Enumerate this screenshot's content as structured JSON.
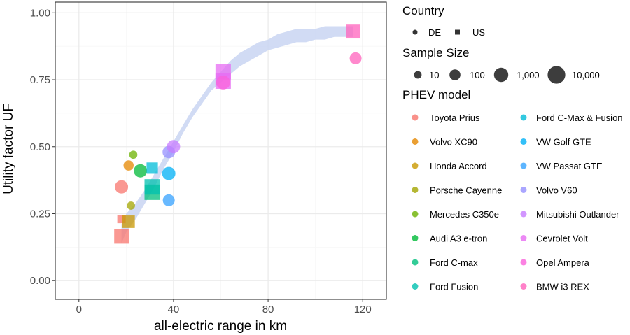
{
  "chart_data": {
    "type": "scatter",
    "xlabel": "all-electric range in km",
    "ylabel": "Utility factor UF",
    "xlim": [
      -10,
      130
    ],
    "ylim": [
      -0.07,
      1.04
    ],
    "x_ticks": [
      0,
      40,
      80,
      120
    ],
    "x_tick_labels": [
      "0",
      "40",
      "80",
      "120"
    ],
    "y_ticks": [
      0,
      0.25,
      0.5,
      0.75,
      1.0
    ],
    "y_tick_labels": [
      "0.00",
      "0.25",
      "0.50",
      "0.75",
      "1.00"
    ],
    "grid": true,
    "trend": {
      "type": "smooth-fit-band",
      "x": [
        18,
        20,
        24,
        28,
        32,
        36,
        40,
        44,
        48,
        52,
        56,
        60,
        64,
        68,
        72,
        76,
        80,
        84,
        88,
        92,
        96,
        100,
        104,
        108,
        112,
        116
      ],
      "lower": [
        0.14,
        0.18,
        0.23,
        0.29,
        0.35,
        0.42,
        0.48,
        0.55,
        0.61,
        0.66,
        0.71,
        0.74,
        0.77,
        0.8,
        0.82,
        0.84,
        0.86,
        0.87,
        0.88,
        0.89,
        0.89,
        0.9,
        0.9,
        0.91,
        0.91,
        0.91
      ],
      "upper": [
        0.21,
        0.25,
        0.29,
        0.34,
        0.4,
        0.46,
        0.52,
        0.58,
        0.64,
        0.69,
        0.74,
        0.78,
        0.82,
        0.85,
        0.87,
        0.89,
        0.9,
        0.92,
        0.93,
        0.94,
        0.94,
        0.94,
        0.95,
        0.95,
        0.95,
        0.95
      ]
    },
    "points": [
      {
        "model": "Toyota Prius",
        "country": "US",
        "x": 18,
        "y": 0.165,
        "n": 5000
      },
      {
        "model": "Toyota Prius",
        "country": "US",
        "x": 18,
        "y": 0.23,
        "n": 40
      },
      {
        "model": "Toyota Prius",
        "country": "DE",
        "x": 18,
        "y": 0.35,
        "n": 500
      },
      {
        "model": "Volvo XC90",
        "country": "DE",
        "x": 21,
        "y": 0.43,
        "n": 60
      },
      {
        "model": "Honda Accord",
        "country": "US",
        "x": 21,
        "y": 0.22,
        "n": 1000
      },
      {
        "model": "Porsche Cayenne",
        "country": "DE",
        "x": 22,
        "y": 0.28,
        "n": 15
      },
      {
        "model": "Mercedes C350e",
        "country": "DE",
        "x": 23,
        "y": 0.47,
        "n": 15
      },
      {
        "model": "Audi A3 e-tron",
        "country": "DE",
        "x": 26,
        "y": 0.41,
        "n": 500
      },
      {
        "model": "Ford C-max",
        "country": "US",
        "x": 31,
        "y": 0.33,
        "n": 10000
      },
      {
        "model": "Ford Fusion",
        "country": "US",
        "x": 31,
        "y": 0.35,
        "n": 10000
      },
      {
        "model": "Ford C-Max & Fusion",
        "country": "US",
        "x": 31,
        "y": 0.42,
        "n": 400
      },
      {
        "model": "VW Golf GTE",
        "country": "DE",
        "x": 38,
        "y": 0.4,
        "n": 500
      },
      {
        "model": "VW Passat GTE",
        "country": "DE",
        "x": 38,
        "y": 0.3,
        "n": 200
      },
      {
        "model": "Volvo V60",
        "country": "DE",
        "x": 38,
        "y": 0.48,
        "n": 300
      },
      {
        "model": "Mitsubishi Outlander",
        "country": "DE",
        "x": 40,
        "y": 0.5,
        "n": 500
      },
      {
        "model": "Cevrolet Volt",
        "country": "US",
        "x": 61,
        "y": 0.78,
        "n": 10000
      },
      {
        "model": "Cevrolet Volt",
        "country": "US",
        "x": 61,
        "y": 0.745,
        "n": 10000
      },
      {
        "model": "Opel Ampera",
        "country": "DE",
        "x": 61,
        "y": 0.74,
        "n": 800
      },
      {
        "model": "BMW i3 REX",
        "country": "US",
        "x": 116,
        "y": 0.93,
        "n": 3000
      },
      {
        "model": "BMW i3 REX",
        "country": "DE",
        "x": 117,
        "y": 0.83,
        "n": 200
      }
    ],
    "legend": {
      "position": "right",
      "country": {
        "title": "Country",
        "items": [
          {
            "label": "DE",
            "shape": "circle"
          },
          {
            "label": "US",
            "shape": "square"
          }
        ]
      },
      "size": {
        "title": "Sample Size",
        "items": [
          {
            "label": "10",
            "n": 10
          },
          {
            "label": "100",
            "n": 100
          },
          {
            "label": "1,000",
            "n": 1000
          },
          {
            "label": "10,000",
            "n": 10000
          }
        ]
      },
      "model": {
        "title": "PHEV model",
        "items": [
          {
            "label": "Toyota Prius",
            "color": "#F8766D"
          },
          {
            "label": "Volvo XC90",
            "color": "#E58700"
          },
          {
            "label": "Honda Accord",
            "color": "#C99800"
          },
          {
            "label": "Porsche Cayenne",
            "color": "#A3A500"
          },
          {
            "label": "Mercedes C350e",
            "color": "#6BB100"
          },
          {
            "label": "Audi A3 e-tron",
            "color": "#00BA38"
          },
          {
            "label": "Ford C-max",
            "color": "#00BF7D"
          },
          {
            "label": "Ford Fusion",
            "color": "#00C0AF"
          },
          {
            "label": "Ford C-Max & Fusion",
            "color": "#00BCD8"
          },
          {
            "label": "VW Golf GTE",
            "color": "#00B0F6"
          },
          {
            "label": "VW Passat GTE",
            "color": "#35A2FF"
          },
          {
            "label": "Volvo V60",
            "color": "#9590FF"
          },
          {
            "label": "Mitsubishi Outlander",
            "color": "#C77CFF"
          },
          {
            "label": "Cevrolet Volt",
            "color": "#E76BF3"
          },
          {
            "label": "Opel Ampera",
            "color": "#FA62DB"
          },
          {
            "label": "BMW i3 REX",
            "color": "#FF62BC"
          }
        ]
      }
    },
    "colors": {
      "band": "#C9D5F2",
      "panel_border": "#333333",
      "grid_major": "#EBEBEB",
      "grid_minor": "#F7F7F7",
      "tick": "#4d4d4d"
    }
  }
}
